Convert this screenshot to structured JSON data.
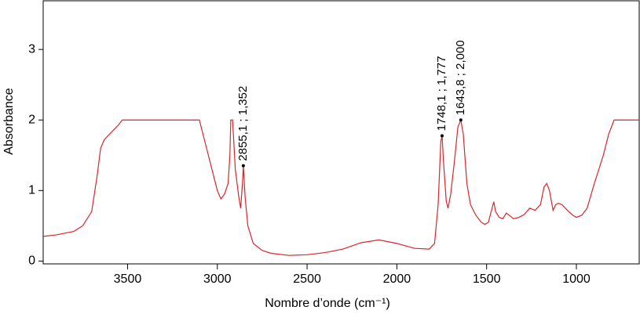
{
  "chart_data": {
    "type": "line",
    "xlabel": "Nombre d’onde (cm⁻¹)",
    "ylabel": "Absorbance",
    "xlim": [
      3970,
      650
    ],
    "ylim": [
      -0.04,
      3.69
    ],
    "xticks": [
      3500,
      3000,
      2500,
      2000,
      1500,
      1000
    ],
    "yticks": [
      0,
      1,
      2,
      3
    ],
    "x": [
      3970,
      3900,
      3800,
      3750,
      3700,
      3670,
      3650,
      3630,
      3600,
      3570,
      3550,
      3530,
      3100,
      3080,
      3050,
      3020,
      3000,
      2980,
      2960,
      2940,
      2930,
      2925,
      2915,
      2900,
      2880,
      2870,
      2860,
      2855.1,
      2845,
      2830,
      2800,
      2750,
      2700,
      2600,
      2500,
      2400,
      2300,
      2200,
      2100,
      2000,
      1900,
      1820,
      1790,
      1770,
      1755,
      1748.1,
      1740,
      1725,
      1715,
      1700,
      1680,
      1660,
      1643.8,
      1630,
      1610,
      1590,
      1560,
      1530,
      1510,
      1490,
      1475,
      1460,
      1450,
      1430,
      1410,
      1390,
      1375,
      1350,
      1320,
      1290,
      1260,
      1230,
      1200,
      1180,
      1165,
      1150,
      1130,
      1115,
      1100,
      1080,
      1050,
      1020,
      1000,
      970,
      940,
      900,
      850,
      820,
      790,
      650
    ],
    "series": [
      {
        "color": "#d9262b",
        "values": [
          0.35,
          0.37,
          0.42,
          0.5,
          0.7,
          1.2,
          1.6,
          1.72,
          1.8,
          1.88,
          1.93,
          2.0,
          2.0,
          1.8,
          1.5,
          1.2,
          1.0,
          0.88,
          0.95,
          1.1,
          1.5,
          2.0,
          2.0,
          1.3,
          0.9,
          0.75,
          1.1,
          1.352,
          0.9,
          0.5,
          0.25,
          0.15,
          0.11,
          0.08,
          0.09,
          0.12,
          0.17,
          0.26,
          0.3,
          0.25,
          0.18,
          0.17,
          0.25,
          0.8,
          1.7,
          1.777,
          1.4,
          0.85,
          0.75,
          0.95,
          1.4,
          1.9,
          2.0,
          1.8,
          1.1,
          0.8,
          0.65,
          0.55,
          0.52,
          0.55,
          0.7,
          0.84,
          0.7,
          0.62,
          0.6,
          0.68,
          0.65,
          0.6,
          0.62,
          0.66,
          0.75,
          0.72,
          0.8,
          1.05,
          1.1,
          1.0,
          0.72,
          0.8,
          0.82,
          0.8,
          0.72,
          0.65,
          0.62,
          0.65,
          0.75,
          1.1,
          1.5,
          1.8,
          2.0,
          2.0
        ]
      }
    ],
    "annotations": [
      {
        "x": 2855.1,
        "y": 1.352,
        "label": "2855,1 ; 1,352"
      },
      {
        "x": 1748.1,
        "y": 1.777,
        "label": "1748,1 ; 1,777"
      },
      {
        "x": 1643.8,
        "y": 2.0,
        "label": "1643,8 ; 2,000"
      }
    ]
  }
}
